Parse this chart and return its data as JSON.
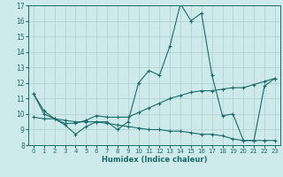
{
  "xlabel": "Humidex (Indice chaleur)",
  "xlim": [
    -0.5,
    23.5
  ],
  "ylim": [
    8,
    17
  ],
  "xticks": [
    0,
    1,
    2,
    3,
    4,
    5,
    6,
    7,
    8,
    9,
    10,
    11,
    12,
    13,
    14,
    15,
    16,
    17,
    18,
    19,
    20,
    21,
    22,
    23
  ],
  "yticks": [
    8,
    9,
    10,
    11,
    12,
    13,
    14,
    15,
    16,
    17
  ],
  "background_color": "#ceeaea",
  "grid_color": "#aed0d0",
  "line_color": "#1a6b6b",
  "line1_y": [
    11.3,
    10.0,
    9.7,
    9.3,
    8.7,
    9.2,
    9.5,
    9.5,
    9.0,
    9.5,
    12.0,
    12.8,
    12.5,
    14.4,
    17.1,
    16.0,
    16.5,
    12.5,
    9.9,
    10.0,
    8.3,
    8.3,
    11.8,
    12.3
  ],
  "line2_y": [
    11.3,
    10.2,
    9.7,
    9.4,
    9.4,
    9.6,
    9.9,
    9.8,
    9.8,
    9.8,
    10.1,
    10.4,
    10.7,
    11.0,
    11.2,
    11.4,
    11.5,
    11.5,
    11.6,
    11.7,
    11.7,
    11.9,
    12.1,
    12.3
  ],
  "line3_y": [
    9.8,
    9.7,
    9.7,
    9.6,
    9.5,
    9.5,
    9.5,
    9.4,
    9.3,
    9.2,
    9.1,
    9.0,
    9.0,
    8.9,
    8.9,
    8.8,
    8.7,
    8.7,
    8.6,
    8.4,
    8.3,
    8.3,
    8.3,
    8.3
  ]
}
